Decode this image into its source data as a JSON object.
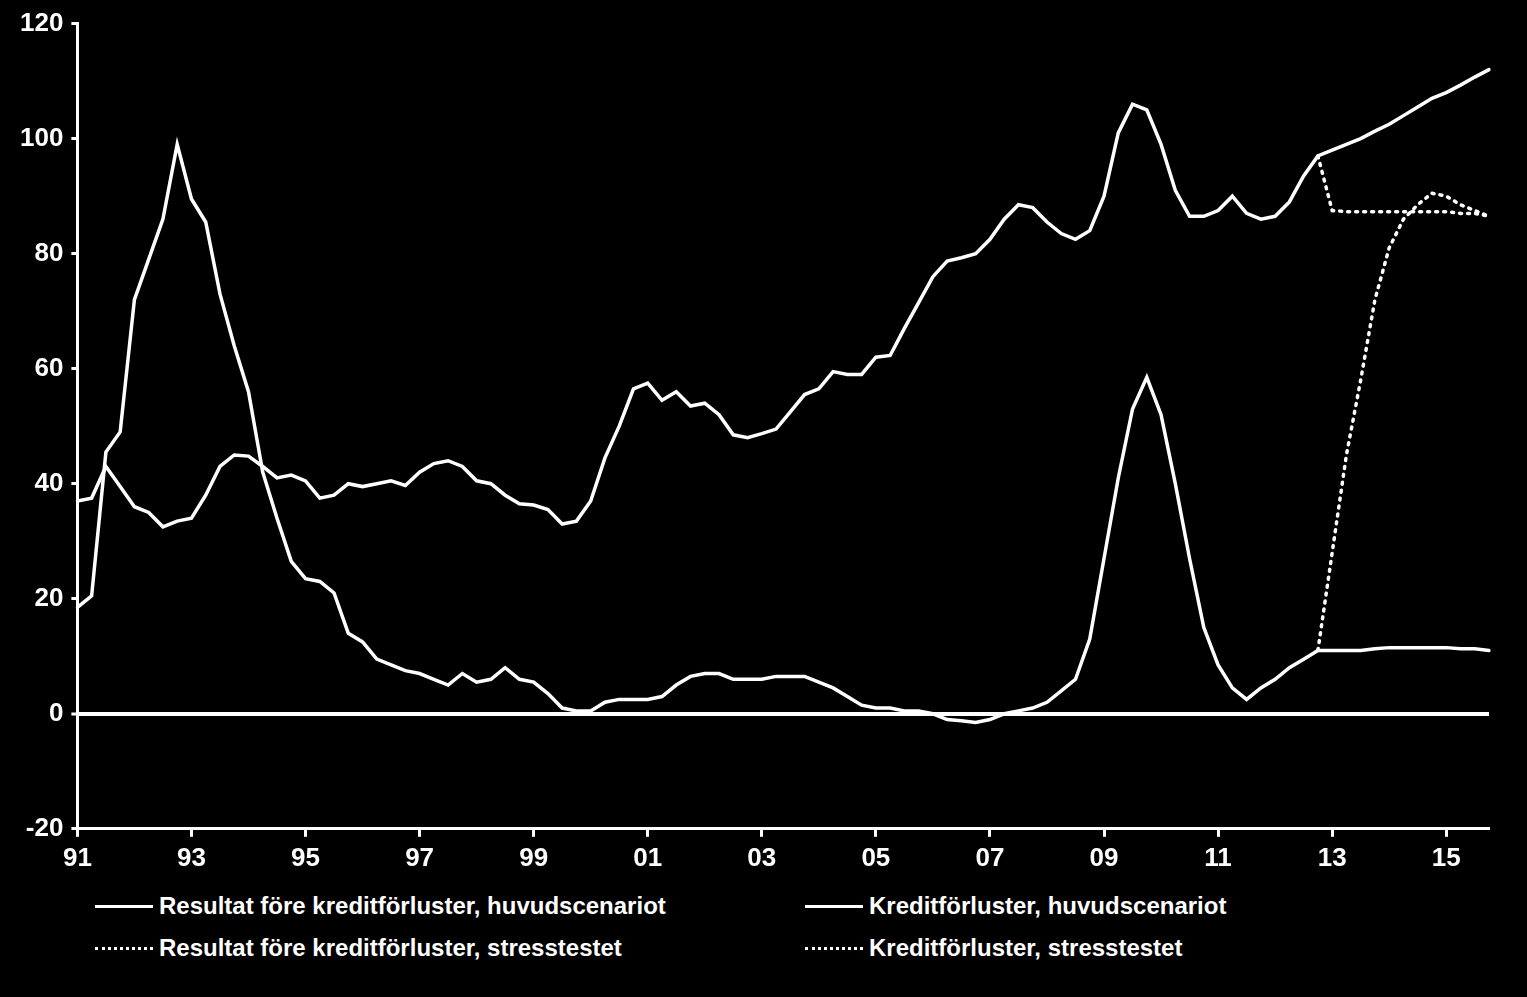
{
  "chart_data": {
    "type": "line",
    "categories": [
      "91",
      null,
      null,
      null,
      null,
      null,
      null,
      null,
      "93",
      null,
      null,
      null,
      null,
      null,
      null,
      null,
      "95",
      null,
      null,
      null,
      null,
      null,
      null,
      null,
      "97",
      null,
      null,
      null,
      null,
      null,
      null,
      null,
      "99",
      null,
      null,
      null,
      null,
      null,
      null,
      null,
      "01",
      null,
      null,
      null,
      null,
      null,
      null,
      null,
      "03",
      null,
      null,
      null,
      null,
      null,
      null,
      null,
      "05",
      null,
      null,
      null,
      null,
      null,
      null,
      null,
      "07",
      null,
      null,
      null,
      null,
      null,
      null,
      null,
      "09",
      null,
      null,
      null,
      null,
      null,
      null,
      null,
      "11",
      null,
      null,
      null,
      null,
      null,
      null,
      null,
      "13",
      null,
      null,
      null,
      null,
      null,
      null,
      null,
      "15",
      null,
      null,
      null
    ],
    "ylim": [
      -20,
      120
    ],
    "yticks": [
      -20,
      0,
      20,
      40,
      60,
      80,
      100,
      120
    ],
    "grid": false,
    "legend": "bottom",
    "series": [
      {
        "name": "Resultat före kreditförluster, huvudscenariot",
        "color": "#ffffff",
        "line_style": "solid",
        "values": [
          37,
          37.5,
          43,
          39.5,
          36,
          35,
          32.5,
          33.5,
          34,
          38,
          43,
          45,
          44.8,
          43,
          41,
          41.5,
          40.5,
          37.5,
          38,
          40,
          39.5,
          40,
          40.5,
          39.7,
          42,
          43.5,
          44,
          43,
          40.5,
          40,
          38,
          36.5,
          36.3,
          35.5,
          33,
          33.5,
          37,
          44.5,
          50,
          56.5,
          57.5,
          54.5,
          56,
          53.5,
          54,
          52,
          48.5,
          48,
          48.7,
          49.5,
          52.5,
          55.5,
          56.5,
          59.5,
          59,
          59,
          62,
          62.3,
          67,
          71.5,
          76,
          78.7,
          79.3,
          80,
          82.5,
          86,
          88.5,
          88,
          85.5,
          83.5,
          82.5,
          84,
          90,
          101,
          106,
          105,
          99,
          91,
          86.5,
          86.5,
          87.5,
          90,
          87,
          86,
          86.5,
          89,
          93.5,
          97,
          98,
          99,
          100,
          101.3,
          102.5,
          104,
          105.5,
          107,
          108,
          109.3,
          110.7,
          112
        ]
      },
      {
        "name": "Kreditförluster, huvudscenariot",
        "color": "#ffffff",
        "line_style": "solid",
        "values": [
          18.5,
          20.5,
          45.5,
          49,
          72,
          79,
          86,
          99,
          89.5,
          85.5,
          73,
          64,
          56,
          42,
          34,
          26.5,
          23.5,
          23,
          21,
          14,
          12.5,
          9.5,
          8.5,
          7.5,
          7,
          6,
          5,
          7,
          5.5,
          6,
          8,
          6,
          5.5,
          3.5,
          1,
          0.5,
          0.5,
          2,
          2.5,
          2.5,
          2.5,
          3,
          5,
          6.5,
          7,
          7,
          6,
          6,
          6,
          6.5,
          6.5,
          6.5,
          5.5,
          4.5,
          3,
          1.5,
          1,
          1,
          0.5,
          0.5,
          0,
          -1,
          -1.2,
          -1.5,
          -1,
          0,
          0.5,
          1,
          2,
          4,
          6,
          13,
          27,
          41,
          53,
          58.5,
          52,
          40,
          27,
          15,
          8.5,
          4.5,
          2.5,
          4.5,
          6,
          8,
          9.5,
          11,
          11,
          11,
          11,
          11.3,
          11.5,
          11.5,
          11.5,
          11.5,
          11.5,
          11.3,
          11.3,
          11
        ]
      },
      {
        "name": "Resultat före kreditförluster, stresstestet",
        "color": "#ffffff",
        "line_style": "dotted",
        "values": [
          null,
          null,
          null,
          null,
          null,
          null,
          null,
          null,
          null,
          null,
          null,
          null,
          null,
          null,
          null,
          null,
          null,
          null,
          null,
          null,
          null,
          null,
          null,
          null,
          null,
          null,
          null,
          null,
          null,
          null,
          null,
          null,
          null,
          null,
          null,
          null,
          null,
          null,
          null,
          null,
          null,
          null,
          null,
          null,
          null,
          null,
          null,
          null,
          null,
          null,
          null,
          null,
          null,
          null,
          null,
          null,
          null,
          null,
          null,
          null,
          null,
          null,
          null,
          null,
          null,
          null,
          null,
          null,
          null,
          null,
          null,
          null,
          null,
          null,
          null,
          null,
          null,
          null,
          null,
          null,
          null,
          null,
          null,
          null,
          null,
          null,
          null,
          97,
          87.5,
          87.3,
          87.3,
          87.3,
          87.3,
          87.3,
          87.3,
          87.3,
          87.3,
          87,
          87,
          86.5
        ]
      },
      {
        "name": "Kreditförluster, stresstestet",
        "color": "#ffffff",
        "line_style": "dotted",
        "values": [
          null,
          null,
          null,
          null,
          null,
          null,
          null,
          null,
          null,
          null,
          null,
          null,
          null,
          null,
          null,
          null,
          null,
          null,
          null,
          null,
          null,
          null,
          null,
          null,
          null,
          null,
          null,
          null,
          null,
          null,
          null,
          null,
          null,
          null,
          null,
          null,
          null,
          null,
          null,
          null,
          null,
          null,
          null,
          null,
          null,
          null,
          null,
          null,
          null,
          null,
          null,
          null,
          null,
          null,
          null,
          null,
          null,
          null,
          null,
          null,
          null,
          null,
          null,
          null,
          null,
          null,
          null,
          null,
          null,
          null,
          null,
          null,
          null,
          null,
          null,
          null,
          null,
          null,
          null,
          null,
          null,
          null,
          null,
          null,
          null,
          null,
          null,
          11,
          28,
          45,
          58,
          72,
          81,
          86,
          88.5,
          90.5,
          90,
          88.5,
          87.5,
          86.5
        ]
      }
    ]
  }
}
